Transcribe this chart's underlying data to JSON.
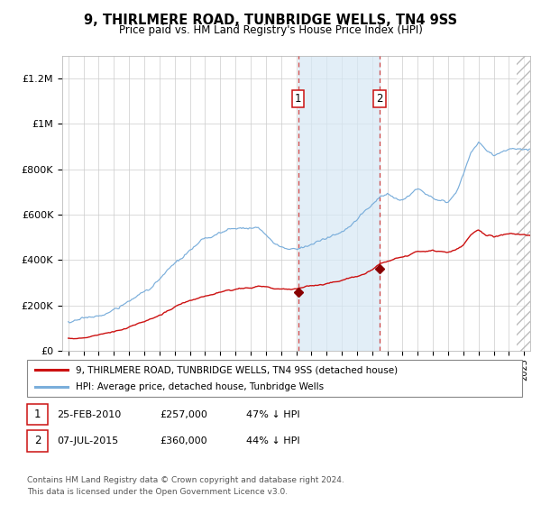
{
  "title": "9, THIRLMERE ROAD, TUNBRIDGE WELLS, TN4 9SS",
  "subtitle": "Price paid vs. HM Land Registry's House Price Index (HPI)",
  "background_color": "#ffffff",
  "plot_bg_color": "#ffffff",
  "grid_color": "#cccccc",
  "sale1_date_num": 2010.13,
  "sale1_price": 257000,
  "sale1_label": "1",
  "sale2_date_num": 2015.5,
  "sale2_price": 360000,
  "sale2_label": "2",
  "hatch_start": 2024.5,
  "shade_start": 2010.13,
  "shade_end": 2015.5,
  "legend_entries": [
    "9, THIRLMERE ROAD, TUNBRIDGE WELLS, TN4 9SS (detached house)",
    "HPI: Average price, detached house, Tunbridge Wells"
  ],
  "table_rows": [
    [
      "1",
      "25-FEB-2010",
      "£257,000",
      "47% ↓ HPI"
    ],
    [
      "2",
      "07-JUL-2015",
      "£360,000",
      "44% ↓ HPI"
    ]
  ],
  "footer": "Contains HM Land Registry data © Crown copyright and database right 2024.\nThis data is licensed under the Open Government Licence v3.0.",
  "hpi_color": "#7aaedb",
  "price_color": "#cc1111",
  "marker_color": "#880000",
  "ylim": [
    0,
    1300000
  ],
  "xlim_start": 1994.6,
  "xlim_end": 2025.4
}
